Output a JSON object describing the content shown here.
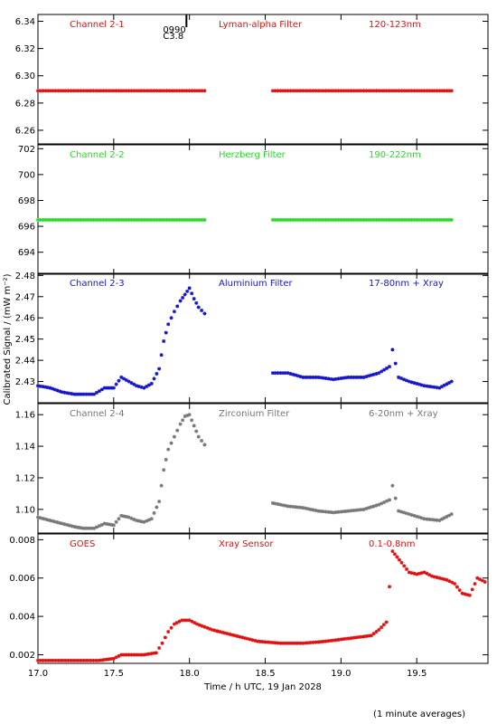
{
  "shared": {
    "xlabel": "Time / h UTC, 19 Jan 2028",
    "ylabel": "Calibrated Signal / (mW m⁻²)",
    "xlim": [
      17.0,
      19.97
    ],
    "xticks": [
      "17.0",
      "17.5",
      "18.0",
      "18.5",
      "19.0",
      "19.5"
    ],
    "footnote": "(1 minute averages)",
    "marker_text": {
      "line1": "0990",
      "line2": "C3.8"
    },
    "flare_marker_x": 17.98
  },
  "chart_data": [
    {
      "type": "scatter",
      "name": "Channel 2-1",
      "header": [
        "Channel 2-1",
        "Lyman-alpha Filter",
        "120-123nm"
      ],
      "color": "#e01010",
      "ylim": [
        6.25,
        6.345
      ],
      "yticks": [
        "6.26",
        "6.28",
        "6.30",
        "6.32",
        "6.34"
      ],
      "x": [
        17.0,
        17.1,
        17.2,
        17.3,
        17.4,
        17.5,
        17.6,
        17.7,
        17.8,
        17.9,
        18.0,
        18.1,
        18.55,
        18.65,
        18.75,
        18.85,
        18.95,
        19.05,
        19.15,
        19.25,
        19.35,
        19.45,
        19.55,
        19.65,
        19.73
      ],
      "y": [
        6.289,
        6.289,
        6.289,
        6.289,
        6.289,
        6.289,
        6.289,
        6.289,
        6.289,
        6.289,
        6.289,
        6.289,
        6.289,
        6.289,
        6.289,
        6.289,
        6.289,
        6.289,
        6.289,
        6.289,
        6.289,
        6.289,
        6.289,
        6.289,
        6.289
      ]
    },
    {
      "type": "scatter",
      "name": "Channel 2-2",
      "header": [
        "Channel 2-2",
        "Herzberg Filter",
        "190-222nm"
      ],
      "color": "#22dd22",
      "ylim": [
        692.3,
        702.3
      ],
      "yticks": [
        "694",
        "696",
        "698",
        "700",
        "702"
      ],
      "x": [
        17.0,
        17.1,
        17.2,
        17.3,
        17.4,
        17.5,
        17.6,
        17.7,
        17.8,
        17.9,
        18.0,
        18.1,
        18.55,
        18.65,
        18.75,
        18.85,
        18.95,
        19.05,
        19.15,
        19.25,
        19.35,
        19.45,
        19.55,
        19.65,
        19.73
      ],
      "y": [
        696.5,
        696.5,
        696.5,
        696.5,
        696.5,
        696.5,
        696.5,
        696.5,
        696.5,
        696.5,
        696.5,
        696.5,
        696.5,
        696.5,
        696.5,
        696.5,
        696.5,
        696.5,
        696.5,
        696.5,
        696.5,
        696.5,
        696.5,
        696.5,
        696.5
      ]
    },
    {
      "type": "scatter",
      "name": "Channel 2-3",
      "header": [
        "Channel 2-3",
        "Aluminium Filter",
        "17-80nm + Xray"
      ],
      "color": "#1515cc",
      "ylim": [
        2.42,
        2.481
      ],
      "yticks": [
        "2.43",
        "2.44",
        "2.45",
        "2.46",
        "2.47",
        "2.48"
      ],
      "x": [
        17.0,
        17.08,
        17.16,
        17.24,
        17.3,
        17.37,
        17.44,
        17.5,
        17.55,
        17.6,
        17.65,
        17.7,
        17.75,
        17.8,
        17.83,
        17.86,
        17.9,
        17.94,
        17.97,
        18.0,
        18.03,
        18.06,
        18.1,
        18.55,
        18.65,
        18.75,
        18.85,
        18.95,
        19.05,
        19.15,
        19.25,
        19.32,
        19.34,
        19.38,
        19.45,
        19.55,
        19.65,
        19.73
      ],
      "y": [
        2.428,
        2.427,
        2.425,
        2.424,
        2.424,
        2.424,
        2.427,
        2.427,
        2.432,
        2.43,
        2.428,
        2.427,
        2.429,
        2.436,
        2.449,
        2.457,
        2.463,
        2.468,
        2.471,
        2.474,
        2.469,
        2.465,
        2.462,
        2.434,
        2.434,
        2.432,
        2.432,
        2.431,
        2.432,
        2.432,
        2.434,
        2.437,
        2.445,
        2.432,
        2.43,
        2.428,
        2.427,
        2.43
      ]
    },
    {
      "type": "scatter",
      "name": "Channel 2-4",
      "header": [
        "Channel 2-4",
        "Zirconium Filter",
        "6-20nm + Xray"
      ],
      "color": "#777777",
      "ylim": [
        1.085,
        1.167
      ],
      "yticks": [
        "1.10",
        "1.12",
        "1.14",
        "1.16"
      ],
      "x": [
        17.0,
        17.08,
        17.16,
        17.24,
        17.3,
        17.37,
        17.44,
        17.5,
        17.55,
        17.6,
        17.65,
        17.7,
        17.75,
        17.8,
        17.83,
        17.86,
        17.9,
        17.94,
        17.97,
        18.0,
        18.03,
        18.06,
        18.1,
        18.55,
        18.65,
        18.75,
        18.85,
        18.95,
        19.05,
        19.15,
        19.25,
        19.32,
        19.34,
        19.38,
        19.45,
        19.55,
        19.65,
        19.73
      ],
      "y": [
        1.095,
        1.093,
        1.091,
        1.089,
        1.088,
        1.088,
        1.091,
        1.09,
        1.096,
        1.095,
        1.093,
        1.092,
        1.094,
        1.105,
        1.125,
        1.138,
        1.146,
        1.154,
        1.159,
        1.16,
        1.153,
        1.146,
        1.141,
        1.104,
        1.102,
        1.101,
        1.099,
        1.098,
        1.099,
        1.1,
        1.103,
        1.106,
        1.115,
        1.099,
        1.097,
        1.094,
        1.093,
        1.097
      ]
    },
    {
      "type": "scatter",
      "name": "GOES",
      "header": [
        "GOES",
        "Xray Sensor",
        "0.1-0.8nm"
      ],
      "color": "#e01010",
      "ylim": [
        0.00155,
        0.0083
      ],
      "yticks": [
        "0.002",
        "0.004",
        "0.006",
        "0.008"
      ],
      "x": [
        17.0,
        17.1,
        17.2,
        17.3,
        17.4,
        17.5,
        17.55,
        17.6,
        17.7,
        17.78,
        17.82,
        17.86,
        17.9,
        17.95,
        18.0,
        18.05,
        18.15,
        18.3,
        18.45,
        18.6,
        18.75,
        18.9,
        19.0,
        19.1,
        19.2,
        19.25,
        19.3,
        19.34,
        19.4,
        19.45,
        19.5,
        19.55,
        19.6,
        19.65,
        19.7,
        19.75,
        19.8,
        19.85,
        19.9,
        19.95
      ],
      "y": [
        0.0017,
        0.0017,
        0.0017,
        0.0017,
        0.0017,
        0.0018,
        0.002,
        0.002,
        0.002,
        0.0021,
        0.0026,
        0.0032,
        0.0036,
        0.0038,
        0.0038,
        0.0036,
        0.0033,
        0.003,
        0.0027,
        0.0026,
        0.0026,
        0.0027,
        0.0028,
        0.0029,
        0.003,
        0.0033,
        0.0037,
        0.0074,
        0.0068,
        0.0063,
        0.0062,
        0.0063,
        0.0061,
        0.006,
        0.0059,
        0.0057,
        0.0052,
        0.0051,
        0.006,
        0.0058
      ]
    }
  ]
}
